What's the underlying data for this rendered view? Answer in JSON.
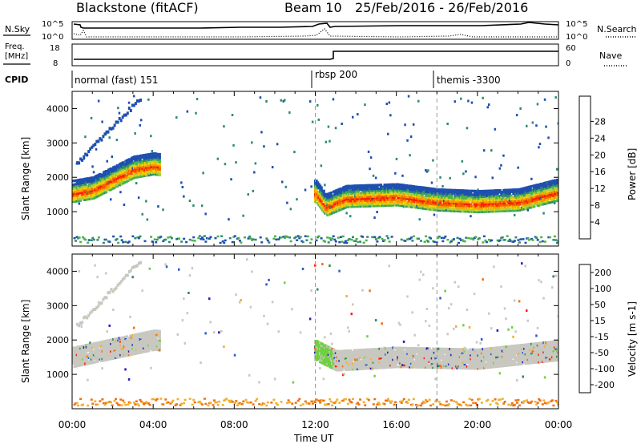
{
  "header": {
    "site": "Blackstone (fitACF)",
    "beam": "Beam 10",
    "dates": "25/Feb/2016 - 26/Feb/2016"
  },
  "panels": {
    "nsky": {
      "left_label": "N.Sky",
      "right_label": "N.Search",
      "left_ticks": [
        "10^5",
        "10^0"
      ],
      "right_ticks": [
        "10^5",
        "10^0"
      ]
    },
    "freq": {
      "left_label_line1": "Freq.",
      "left_label_line2": "[MHz]",
      "right_label": "Nave",
      "left_ticks": [
        "18",
        "8"
      ],
      "right_ticks": [
        "60",
        "0"
      ]
    },
    "cpid": {
      "label": "CPID",
      "segments": [
        {
          "label": "normal (fast) 151",
          "start_hour": 0
        },
        {
          "label": "rbsp 200",
          "start_hour": 12
        },
        {
          "label": "themis -3300",
          "start_hour": 18
        }
      ]
    }
  },
  "chart_data": [
    {
      "type": "heatmap",
      "title": "",
      "ylabel": "Slant Range [km]",
      "xlabel": "",
      "xlim": [
        0,
        24
      ],
      "ylim": [
        0,
        4500
      ],
      "yticks": [
        "1000",
        "2000",
        "3000",
        "4000"
      ],
      "colorbar": {
        "label": "Power [dB]",
        "ticks": [
          "4",
          "8",
          "12",
          "16",
          "20",
          "24",
          "28"
        ],
        "colors": [
          "#0000ff",
          "#1f4fb0",
          "#2f8a73",
          "#4ab24a",
          "#a8d040",
          "#f5d000",
          "#f59d00",
          "#f06000",
          "#ff1a00"
        ]
      },
      "echo_band": [
        {
          "x": 0.0,
          "y": 1600
        },
        {
          "x": 1.0,
          "y": 1700
        },
        {
          "x": 2.0,
          "y": 2000
        },
        {
          "x": 3.0,
          "y": 2300
        },
        {
          "x": 4.0,
          "y": 2400
        },
        {
          "x": 12.0,
          "y": 1600
        },
        {
          "x": 12.5,
          "y": 1200
        },
        {
          "x": 13.5,
          "y": 1450
        },
        {
          "x": 16.0,
          "y": 1500
        },
        {
          "x": 18.0,
          "y": 1350
        },
        {
          "x": 20.0,
          "y": 1300
        },
        {
          "x": 22.0,
          "y": 1350
        },
        {
          "x": 24.0,
          "y": 1650
        }
      ]
    },
    {
      "type": "heatmap",
      "title": "",
      "ylabel": "Slant Range [km]",
      "xlabel": "Time UT",
      "xlim": [
        0,
        24
      ],
      "ylim": [
        0,
        4500
      ],
      "yticks": [
        "1000",
        "2000",
        "3000",
        "4000"
      ],
      "xticks": [
        "00:00",
        "04:00",
        "08:00",
        "12:00",
        "16:00",
        "20:00",
        "00:00"
      ],
      "colorbar": {
        "label": "Velocity [m s-1]",
        "ticks": [
          "200",
          "100",
          "50",
          "15",
          "-15",
          "-50",
          "-100",
          "-200"
        ],
        "colors": [
          "#2020c0",
          "#2a5bd0",
          "#2f8a5a",
          "#6fd040",
          "#c8c8c0",
          "#f0b030",
          "#f07010",
          "#ff2000"
        ]
      },
      "echo_band": [
        {
          "x": 0.0,
          "y": 1500
        },
        {
          "x": 2.0,
          "y": 1750
        },
        {
          "x": 4.0,
          "y": 2000
        },
        {
          "x": 12.0,
          "y": 1700
        },
        {
          "x": 13.0,
          "y": 1400
        },
        {
          "x": 16.0,
          "y": 1500
        },
        {
          "x": 20.0,
          "y": 1450
        },
        {
          "x": 24.0,
          "y": 1700
        }
      ]
    }
  ]
}
